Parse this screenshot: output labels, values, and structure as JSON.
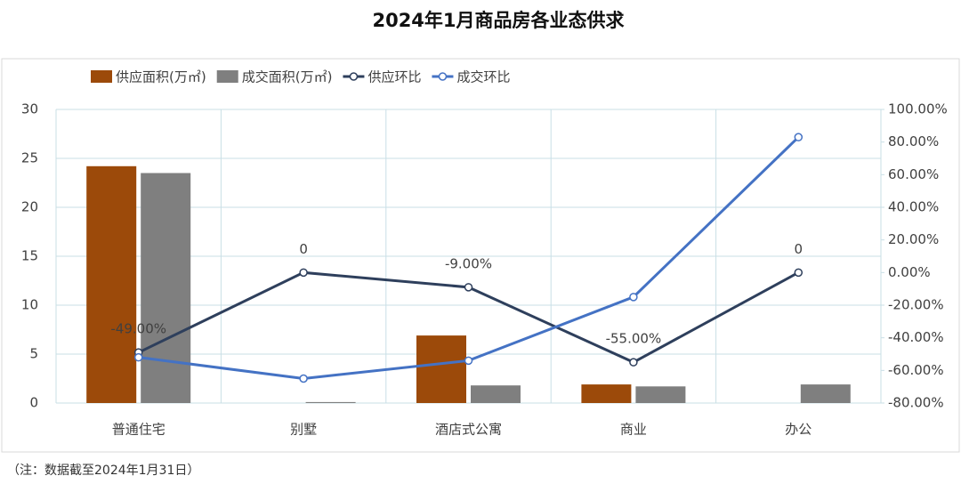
{
  "chart_data": {
    "type": "bar-line",
    "title": "2024年1月商品房各业态供求",
    "categories": [
      "普通住宅",
      "别墅",
      "酒店式公寓",
      "商业",
      "办公"
    ],
    "series": [
      {
        "name": "供应面积(万㎡)",
        "type": "bar",
        "color": "#9c4a0a",
        "values": [
          24.2,
          0,
          6.9,
          1.9,
          0
        ]
      },
      {
        "name": "成交面积(万㎡)",
        "type": "bar",
        "color": "#7f7f7f",
        "values": [
          23.5,
          0.1,
          1.8,
          1.7,
          1.9
        ]
      },
      {
        "name": "供应环比",
        "type": "line",
        "axis": "y2",
        "color": "#2e3f5c",
        "values": [
          -49,
          0,
          -9,
          -55,
          0
        ],
        "value_labels": [
          "-49.00%",
          "0",
          "-9.00%",
          "-55.00%",
          "0"
        ]
      },
      {
        "name": "成交环比",
        "type": "line",
        "axis": "y2",
        "color": "#4472c4",
        "values": [
          -52,
          -65,
          -54,
          -15,
          83
        ]
      }
    ],
    "ylim": [
      0,
      30
    ],
    "yticks": [
      0,
      5,
      10,
      15,
      20,
      25,
      30
    ],
    "y2lim": [
      -80,
      100
    ],
    "y2ticks": [
      {
        "value": -80,
        "label": "-80.00%"
      },
      {
        "value": -60,
        "label": "-60.00%"
      },
      {
        "value": -40,
        "label": "-40.00%"
      },
      {
        "value": -20,
        "label": "-20.00%"
      },
      {
        "value": 0,
        "label": "0.00%"
      },
      {
        "value": 20,
        "label": "20.00%"
      },
      {
        "value": 40,
        "label": "40.00%"
      },
      {
        "value": 60,
        "label": "60.00%"
      },
      {
        "value": 80,
        "label": "80.00%"
      },
      {
        "value": 100,
        "label": "100.00%"
      }
    ],
    "grid": true,
    "note": "（注：数据截至2024年1月31日）"
  }
}
